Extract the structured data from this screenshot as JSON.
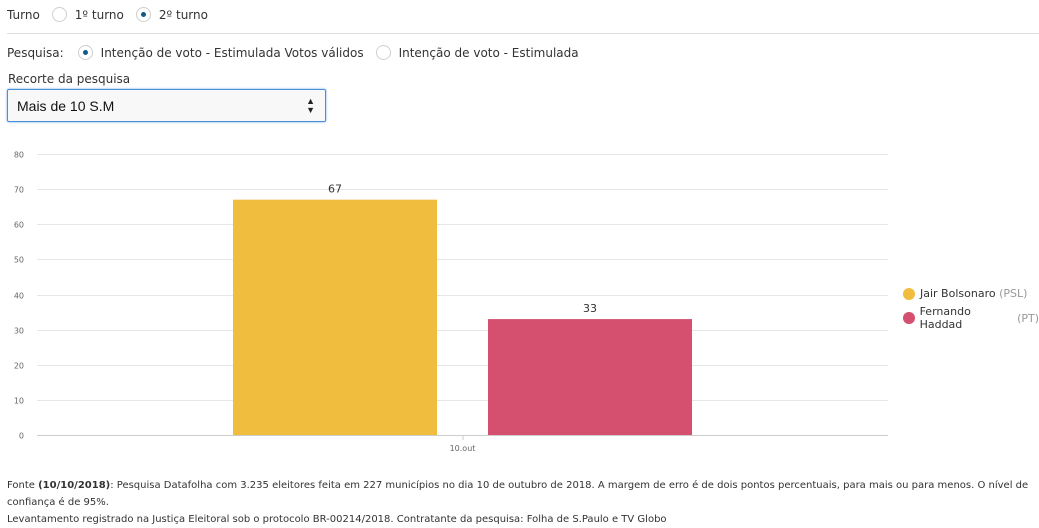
{
  "turno": {
    "label": "Turno",
    "options": [
      {
        "label": "1º turno",
        "checked": false
      },
      {
        "label": "2º turno",
        "checked": true
      }
    ]
  },
  "pesquisa": {
    "label": "Pesquisa:",
    "options": [
      {
        "label": "Intenção de voto - Estimulada Votos válidos",
        "checked": true
      },
      {
        "label": "Intenção de voto - Estimulada",
        "checked": false
      }
    ]
  },
  "recorte": {
    "label": "Recorte da pesquisa",
    "selected": "Mais de 10 S.M"
  },
  "chart_data": {
    "type": "bar",
    "categories": [
      "10.out"
    ],
    "series": [
      {
        "name": "Jair Bolsonaro",
        "party": "(PSL)",
        "values": [
          67
        ],
        "color": "#f0bd3e"
      },
      {
        "name": "Fernando Haddad",
        "party": "(PT)",
        "values": [
          33
        ],
        "color": "#d4506e"
      }
    ],
    "ylim": [
      0,
      80
    ],
    "yticks": [
      0,
      10,
      20,
      30,
      40,
      50,
      60,
      70,
      80
    ],
    "grid": true,
    "legend": "right"
  },
  "footer": {
    "prefix": "Fonte ",
    "date": "(10/10/2018)",
    "line1": ": Pesquisa Datafolha com 3.235 eleitores feita em 227 municípios no dia 10 de outubro de 2018. A margem de erro é de dois pontos percentuais, para mais ou para menos. O nível de confiança é de 95%.",
    "line2": "Levantamento registrado na Justiça Eleitoral sob o protocolo BR-00214/2018. Contratante da pesquisa: Folha de S.Paulo e TV Globo"
  }
}
